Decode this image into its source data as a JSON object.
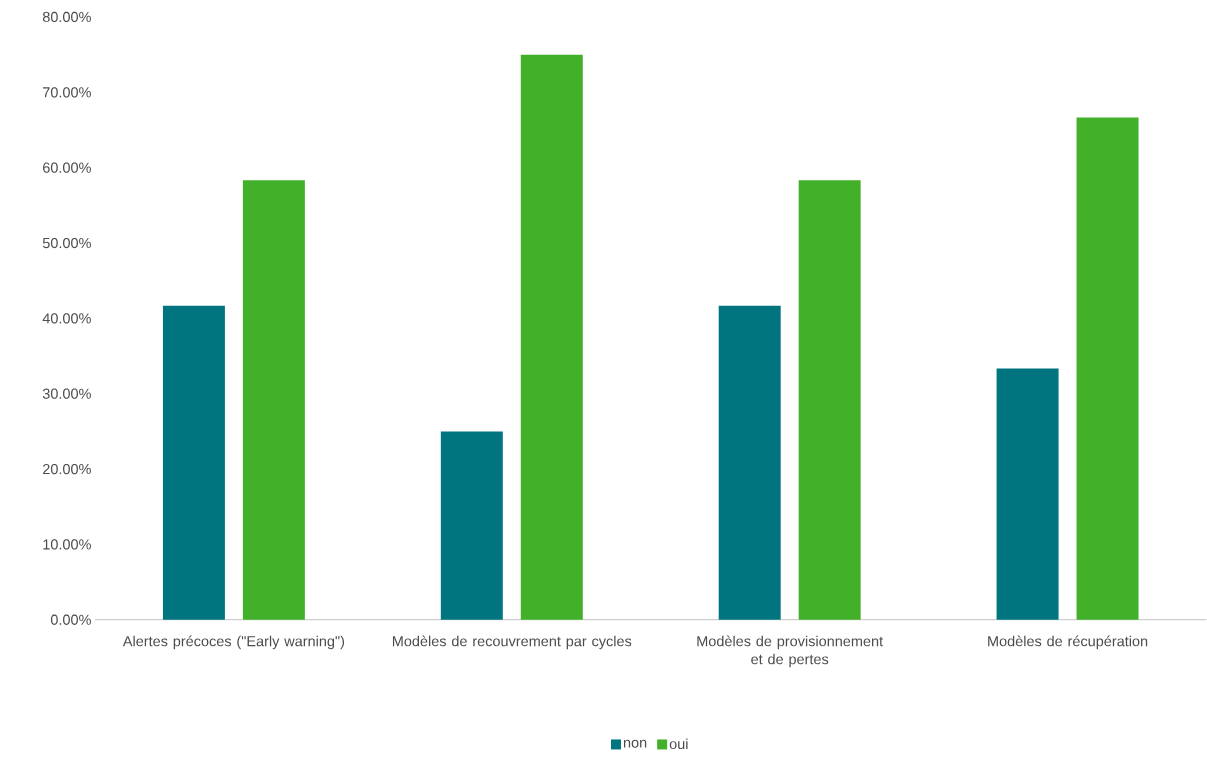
{
  "chart_data": {
    "type": "bar",
    "categories": [
      "Alertes précoces (\"Early warning\")",
      "Modèles de recouvrement par cycles",
      "Modèles de provisionnement et de pertes",
      "Modèles de récupération"
    ],
    "series": [
      {
        "name": "non",
        "color": "#007580",
        "values": [
          41.67,
          25,
          41.67,
          33.33
        ]
      },
      {
        "name": "oui",
        "color": "#43b02a",
        "values": [
          58.33,
          75,
          58.33,
          66.67
        ]
      }
    ],
    "ylim": [
      0,
      80
    ],
    "yticks": [
      {
        "value": 0,
        "label": "0.00%"
      },
      {
        "value": 10,
        "label": "10.00%"
      },
      {
        "value": 20,
        "label": "20.00%"
      },
      {
        "value": 30,
        "label": "30.00%"
      },
      {
        "value": 40,
        "label": "40.00%"
      },
      {
        "value": 50,
        "label": "50.00%"
      },
      {
        "value": 60,
        "label": "60.00%"
      },
      {
        "value": 70,
        "label": "70.00%"
      },
      {
        "value": 80,
        "label": "80.00%"
      }
    ],
    "legend": "bottom"
  }
}
